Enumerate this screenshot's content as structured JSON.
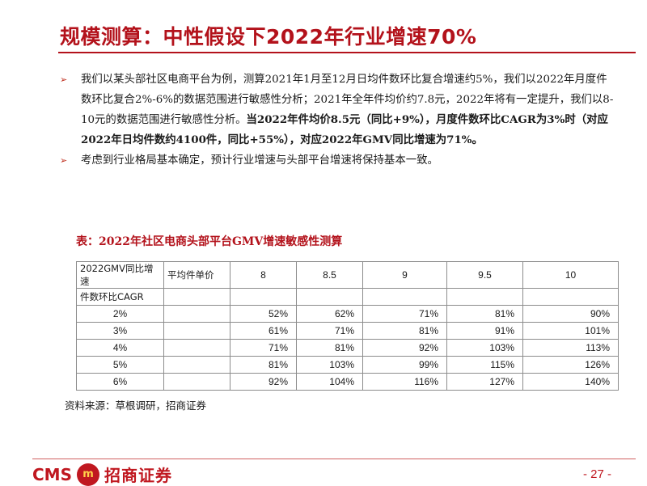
{
  "title": "规模测算：中性假设下2022年行业增速70%",
  "bullets": [
    {
      "parts": [
        "我们以某头部社区电商平台为例，测算2021年1月至12月日均件数环比复合增速约5%，我们以2022年月度件数环比复合2%-6%的数据范围进行敏感性分析；2021年全年件均价约7.8元，2022年将有一定提升，我们以8-10元的数据范围进行敏感性分析。",
        "当2022年件均价8.5元（同比+9%），月度件数环比CAGR为3%时（对应2022年日均件数约4100件，同比+55%），对应2022年GMV同比增速为71%。"
      ]
    },
    {
      "parts": [
        "考虑到行业格局基本确定，预计行业增速与头部平台增速将保持基本一致。"
      ]
    }
  ],
  "table": {
    "title": "表：2022年社区电商头部平台GMV增速敏感性测算",
    "corner_top": "2022GMV同比增速",
    "price_label": "平均件单价",
    "row_axis_label": "件数环比CAGR",
    "prices": [
      "8",
      "8.5",
      "9",
      "9.5",
      "10"
    ],
    "rows": [
      {
        "cagr": "2%",
        "values": [
          "52%",
          "62%",
          "71%",
          "81%",
          "90%"
        ]
      },
      {
        "cagr": "3%",
        "values": [
          "61%",
          "71%",
          "81%",
          "91%",
          "101%"
        ]
      },
      {
        "cagr": "4%",
        "values": [
          "71%",
          "81%",
          "92%",
          "103%",
          "113%"
        ]
      },
      {
        "cagr": "5%",
        "values": [
          "81%",
          "103%",
          "99%",
          "115%",
          "126%"
        ]
      },
      {
        "cagr": "6%",
        "values": [
          "92%",
          "104%",
          "116%",
          "127%",
          "140%"
        ]
      }
    ]
  },
  "source": "资料来源：草根调研，招商证券",
  "footer": {
    "logo_text": "CMS",
    "logo_emblem": "m",
    "logo_cn": "招商证券",
    "page_number": "- 27 -"
  },
  "colors": {
    "accent": "#b3121b",
    "brand": "#c01820"
  }
}
